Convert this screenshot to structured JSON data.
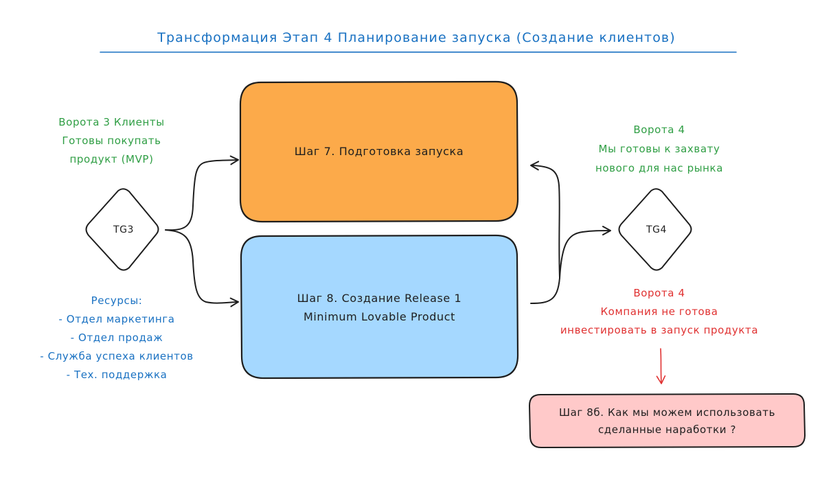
{
  "title": "Трансформация Этап 4 Планирование запуска (Создание клиентов)",
  "nodes": {
    "step7": {
      "label": "Шаг 7. Подготовка запуска",
      "fill": "#fcaa4a"
    },
    "step8": {
      "line1": "Шаг 8. Создание Release 1",
      "line2": "Minimum Lovable Product",
      "fill": "#a5d8ff"
    },
    "step8b": {
      "line1": "Шаг 8б. Как мы можем использовать",
      "line2": "сделанные наработки ?",
      "fill": "#ffc9c9"
    },
    "tg3": {
      "label": "TG3"
    },
    "tg4": {
      "label": "TG4"
    }
  },
  "annotations": {
    "gate3": {
      "line1": "Ворота 3 Клиенты",
      "line2": "Готовы покупать",
      "line3": "продукт (MVP)",
      "color": "#2f9e44"
    },
    "resources": {
      "line1": "Ресурсы:",
      "line2": "- Отдел маркетинга",
      "line3": "- Отдел продаж",
      "line4": "- Служба успеха клиентов",
      "line5": "- Тех. поддержка",
      "color": "#1971c2"
    },
    "gate4_yes": {
      "line1": "Ворота 4",
      "line2": "Мы готовы к захвату",
      "line3": "нового для нас рынка",
      "color": "#2f9e44"
    },
    "gate4_no": {
      "line1": "Ворота 4",
      "line2": "Компания не готова",
      "line3": "инвестировать в запуск продукта",
      "color": "#e03131"
    }
  }
}
